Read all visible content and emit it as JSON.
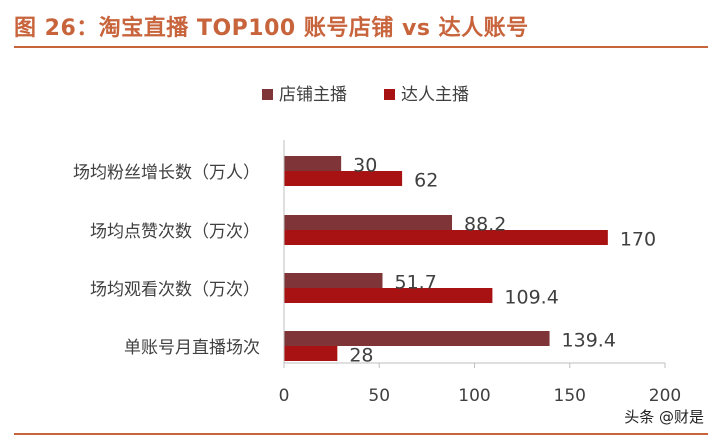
{
  "figure": {
    "title": "图 26：淘宝直播 TOP100 账号店铺 vs 达人账号"
  },
  "watermark": "头条 @财是",
  "colors": {
    "title": "#c8643c",
    "series_shop": "#7f3537",
    "series_influencer": "#a91212",
    "axis": "#bfbfbf",
    "text": "#404040"
  },
  "chart_data": {
    "type": "bar",
    "orientation": "horizontal",
    "categories": [
      "场均粉丝增长数（万人）",
      "场均点赞次数（万次）",
      "场均观看次数（万次）",
      "单账号月直播场次"
    ],
    "series": [
      {
        "name": "店铺主播",
        "values": [
          30,
          88.2,
          51.7,
          139.4
        ],
        "value_labels": [
          "30",
          "88.2",
          "51.7",
          "139.4"
        ]
      },
      {
        "name": "达人主播",
        "values": [
          62,
          170,
          109.4,
          28
        ],
        "value_labels": [
          "62",
          "170",
          "109.4",
          "28"
        ]
      }
    ],
    "xlim": [
      0,
      200
    ],
    "xticks": [
      "0",
      "50",
      "100",
      "150",
      "200"
    ],
    "legend_position": "top",
    "grid": false
  }
}
